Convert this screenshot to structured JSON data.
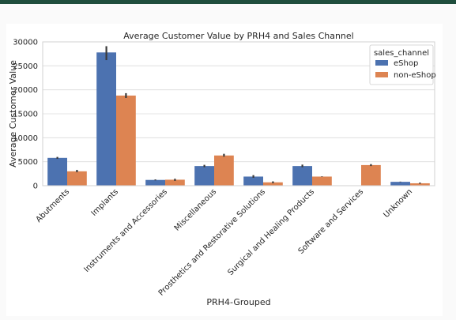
{
  "chart_data": {
    "type": "bar",
    "title": "Average Customer Value by PRH4 and Sales Channel",
    "xlabel": "PRH4-Grouped",
    "ylabel": "Average Customer Value",
    "ylim": [
      0,
      30000
    ],
    "yticks": [
      0,
      5000,
      10000,
      15000,
      20000,
      25000,
      30000
    ],
    "grid": true,
    "legend": {
      "title": "sales_channel",
      "placement": "top-right"
    },
    "categories": [
      "Abutments",
      "Implants",
      "Instruments and Accessories",
      "Miscellaneous",
      "Prosthetics and Restorative Solutions",
      "Surgical and Healing Products",
      "Software and Services",
      "Unknown"
    ],
    "series": [
      {
        "name": "eShop",
        "color": "#4c72b0",
        "values": [
          5800,
          27800,
          1200,
          4100,
          1900,
          4100,
          null,
          800
        ],
        "error_low": [
          5600,
          26200,
          1100,
          3850,
          1650,
          3850,
          null,
          750
        ],
        "error_high": [
          6000,
          29100,
          1300,
          4350,
          2200,
          4400,
          null,
          850
        ]
      },
      {
        "name": "non-eShop",
        "color": "#dd8452",
        "values": [
          3000,
          18800,
          1250,
          6300,
          700,
          1900,
          4300,
          500
        ],
        "error_low": [
          2800,
          18300,
          1000,
          6050,
          500,
          1850,
          4100,
          400
        ],
        "error_high": [
          3300,
          19300,
          1450,
          6650,
          900,
          1950,
          4500,
          650
        ]
      }
    ]
  }
}
